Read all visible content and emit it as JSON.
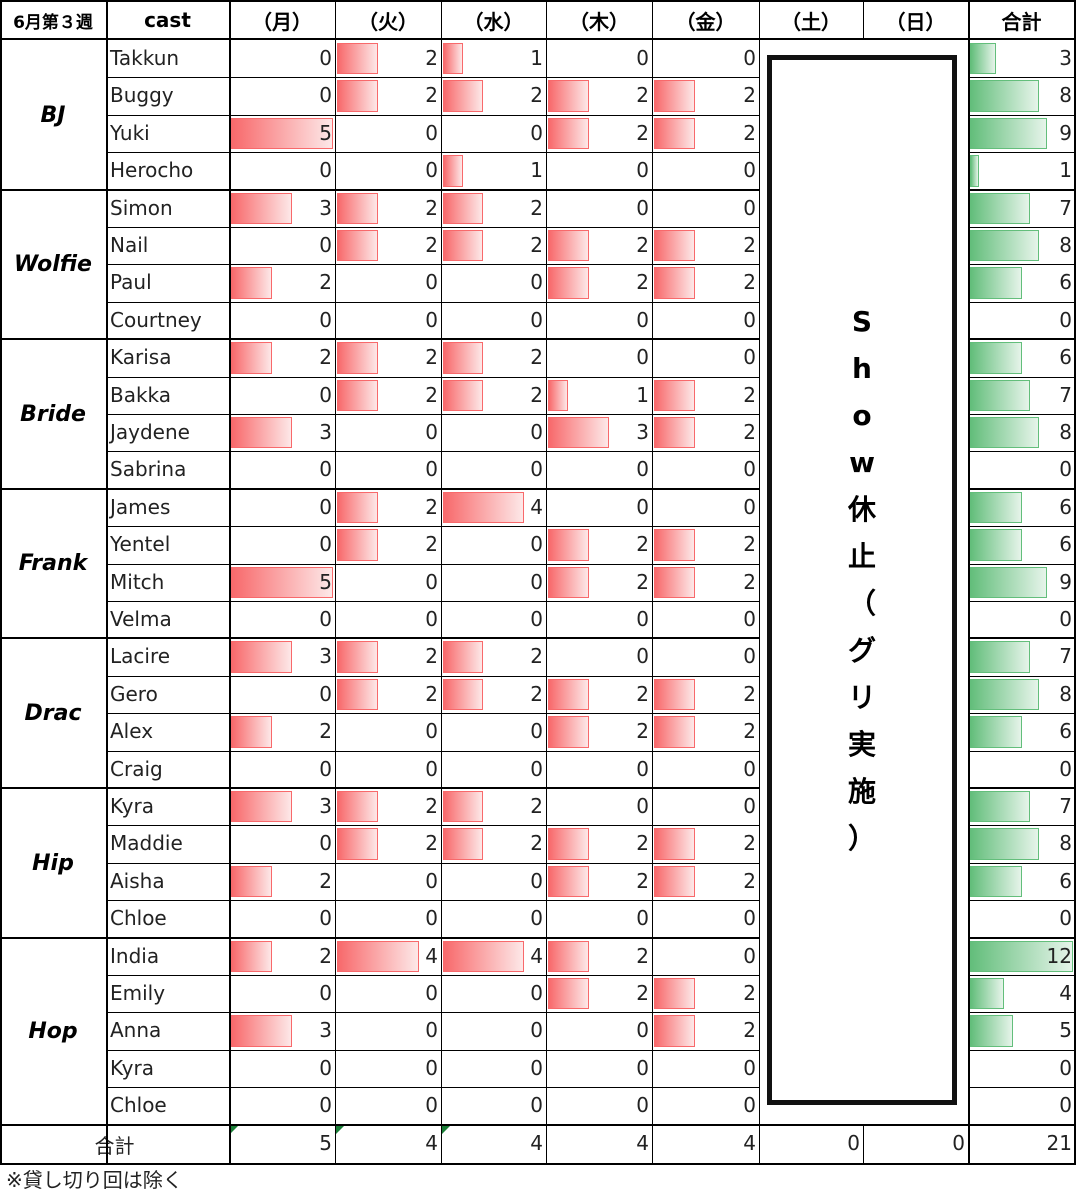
{
  "sheet": {
    "corner_label": "6月第３週",
    "cast_header": "cast",
    "day_headers": [
      "（月）",
      "（火）",
      "（水）",
      "（木）",
      "（金）",
      "（土）",
      "（日）"
    ],
    "total_header": "合計",
    "groups": [
      {
        "name": "BJ",
        "rows": [
          {
            "cast": "Takkun",
            "days": [
              0,
              2,
              1,
              0,
              0
            ],
            "total": 3
          },
          {
            "cast": "Buggy",
            "days": [
              0,
              2,
              2,
              2,
              2
            ],
            "total": 8
          },
          {
            "cast": "Yuki",
            "days": [
              5,
              0,
              0,
              2,
              2
            ],
            "total": 9
          },
          {
            "cast": "Herocho",
            "days": [
              0,
              0,
              1,
              0,
              0
            ],
            "total": 1
          }
        ]
      },
      {
        "name": "Wolfie",
        "rows": [
          {
            "cast": "Simon",
            "days": [
              3,
              2,
              2,
              0,
              0
            ],
            "total": 7
          },
          {
            "cast": "Nail",
            "days": [
              0,
              2,
              2,
              2,
              2
            ],
            "total": 8
          },
          {
            "cast": "Paul",
            "days": [
              2,
              0,
              0,
              2,
              2
            ],
            "total": 6
          },
          {
            "cast": "Courtney",
            "days": [
              0,
              0,
              0,
              0,
              0
            ],
            "total": 0
          }
        ]
      },
      {
        "name": "Bride",
        "rows": [
          {
            "cast": "Karisa",
            "days": [
              2,
              2,
              2,
              0,
              0
            ],
            "total": 6
          },
          {
            "cast": "Bakka",
            "days": [
              0,
              2,
              2,
              1,
              2
            ],
            "total": 7
          },
          {
            "cast": "Jaydene",
            "days": [
              3,
              0,
              0,
              3,
              2
            ],
            "total": 8
          },
          {
            "cast": "Sabrina",
            "days": [
              0,
              0,
              0,
              0,
              0
            ],
            "total": 0
          }
        ]
      },
      {
        "name": "Frank",
        "rows": [
          {
            "cast": "James",
            "days": [
              0,
              2,
              4,
              0,
              0
            ],
            "total": 6
          },
          {
            "cast": "Yentel",
            "days": [
              0,
              2,
              0,
              2,
              2
            ],
            "total": 6
          },
          {
            "cast": "Mitch",
            "days": [
              5,
              0,
              0,
              2,
              2
            ],
            "total": 9
          },
          {
            "cast": "Velma",
            "days": [
              0,
              0,
              0,
              0,
              0
            ],
            "total": 0
          }
        ]
      },
      {
        "name": "Drac",
        "rows": [
          {
            "cast": "Lacire",
            "days": [
              3,
              2,
              2,
              0,
              0
            ],
            "total": 7
          },
          {
            "cast": "Gero",
            "days": [
              0,
              2,
              2,
              2,
              2
            ],
            "total": 8
          },
          {
            "cast": "Alex",
            "days": [
              2,
              0,
              0,
              2,
              2
            ],
            "total": 6
          },
          {
            "cast": "Craig",
            "days": [
              0,
              0,
              0,
              0,
              0
            ],
            "total": 0
          }
        ]
      },
      {
        "name": "Hip",
        "rows": [
          {
            "cast": "Kyra",
            "days": [
              3,
              2,
              2,
              0,
              0
            ],
            "total": 7
          },
          {
            "cast": "Maddie",
            "days": [
              0,
              2,
              2,
              2,
              2
            ],
            "total": 8
          },
          {
            "cast": "Aisha",
            "days": [
              2,
              0,
              0,
              2,
              2
            ],
            "total": 6
          },
          {
            "cast": "Chloe",
            "days": [
              0,
              0,
              0,
              0,
              0
            ],
            "total": 0
          }
        ]
      },
      {
        "name": "Hop",
        "rows": [
          {
            "cast": "India",
            "days": [
              2,
              4,
              4,
              2,
              0
            ],
            "total": 12
          },
          {
            "cast": "Emily",
            "days": [
              0,
              0,
              0,
              2,
              2
            ],
            "total": 4
          },
          {
            "cast": "Anna",
            "days": [
              3,
              0,
              0,
              0,
              2
            ],
            "total": 5
          },
          {
            "cast": "Kyra",
            "days": [
              0,
              0,
              0,
              0,
              0
            ],
            "total": 0
          },
          {
            "cast": "Chloe",
            "days": [
              0,
              0,
              0,
              0,
              0
            ],
            "total": 0
          }
        ]
      }
    ],
    "show_notice": "Show休止（グリ実施）",
    "total_row": {
      "label": "合計",
      "values": [
        5,
        4,
        4,
        4,
        4,
        0,
        0,
        21
      ]
    },
    "footnote": "※貸し切り回は除く",
    "colors": {
      "day_bar": "#f8696b",
      "total_bar": "#63be7b",
      "error_marker": "#1a7f37"
    }
  }
}
